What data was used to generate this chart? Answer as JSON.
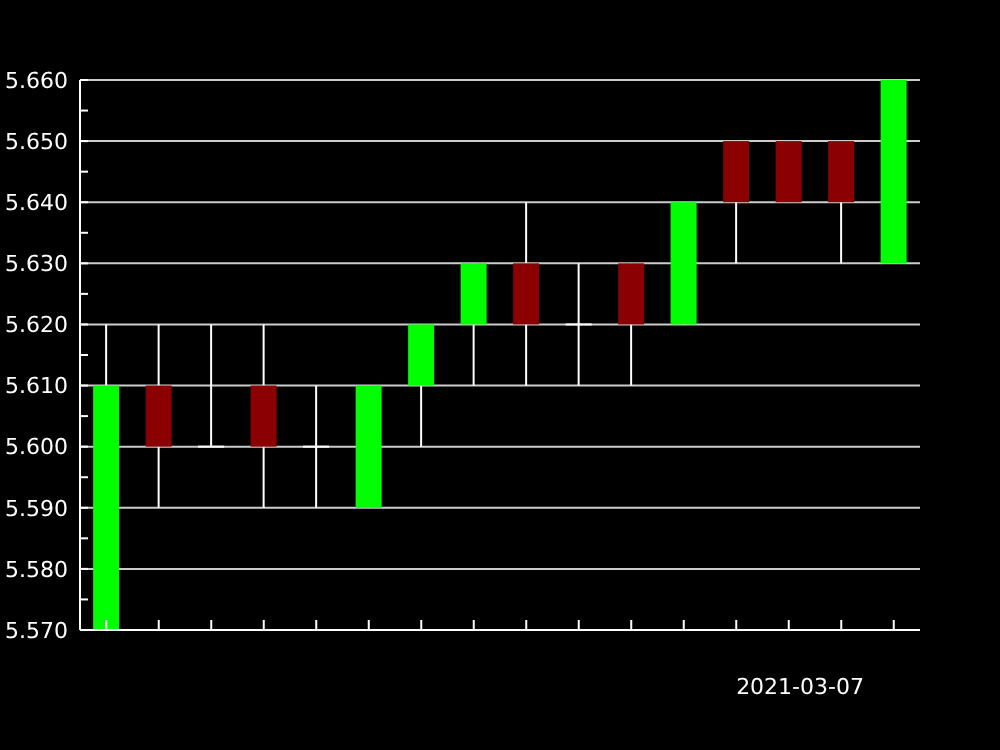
{
  "chart_data": {
    "type": "candlestick",
    "xlabel": "2021-03-07",
    "categories": [
      null,
      null,
      null,
      null,
      null,
      null,
      null,
      null,
      null,
      null,
      null,
      null,
      null,
      null,
      null,
      null
    ],
    "ohlc": [
      [
        5.57,
        5.62,
        5.57,
        5.61
      ],
      [
        5.61,
        5.62,
        5.59,
        5.6
      ],
      [
        5.6,
        5.62,
        5.6,
        5.6
      ],
      [
        5.61,
        5.62,
        5.59,
        5.6
      ],
      [
        5.6,
        5.61,
        5.59,
        5.6
      ],
      [
        5.59,
        5.61,
        5.59,
        5.61
      ],
      [
        5.61,
        5.62,
        5.6,
        5.62
      ],
      [
        5.62,
        5.63,
        5.61,
        5.63
      ],
      [
        5.63,
        5.64,
        5.61,
        5.62
      ],
      [
        5.62,
        5.63,
        5.61,
        5.62
      ],
      [
        5.63,
        5.63,
        5.61,
        5.62
      ],
      [
        5.62,
        5.64,
        5.62,
        5.64
      ],
      [
        5.65,
        5.65,
        5.63,
        5.64
      ],
      [
        5.65,
        5.65,
        5.64,
        5.64
      ],
      [
        5.65,
        5.65,
        5.63,
        5.64
      ],
      [
        5.63,
        5.66,
        5.63,
        5.66
      ]
    ],
    "colors": [
      "#00ff00",
      "#8b0000",
      "#ffffff",
      "#8b0000",
      "#ffffff",
      "#00ff00",
      "#00ff00",
      "#00ff00",
      "#8b0000",
      "#ffffff",
      "#8b0000",
      "#00ff00",
      "#8b0000",
      "#8b0000",
      "#8b0000",
      "#00ff00"
    ],
    "ylim": [
      5.57,
      5.66
    ],
    "yticks": [
      {
        "value": 5.57,
        "label": "5.570"
      },
      {
        "value": 5.575,
        "label": null
      },
      {
        "value": 5.58,
        "label": "5.580"
      },
      {
        "value": 5.585,
        "label": null
      },
      {
        "value": 5.59,
        "label": "5.590"
      },
      {
        "value": 5.595,
        "label": null
      },
      {
        "value": 5.6,
        "label": "5.600"
      },
      {
        "value": 5.605,
        "label": null
      },
      {
        "value": 5.61,
        "label": "5.610"
      },
      {
        "value": 5.615,
        "label": null
      },
      {
        "value": 5.62,
        "label": "5.620"
      },
      {
        "value": 5.625,
        "label": null
      },
      {
        "value": 5.63,
        "label": "5.630"
      },
      {
        "value": 5.635,
        "label": null
      },
      {
        "value": 5.64,
        "label": "5.640"
      },
      {
        "value": 5.645,
        "label": null
      },
      {
        "value": 5.65,
        "label": "5.650"
      },
      {
        "value": 5.655,
        "label": null
      },
      {
        "value": 5.66,
        "label": "5.660"
      }
    ],
    "grid": "y"
  }
}
